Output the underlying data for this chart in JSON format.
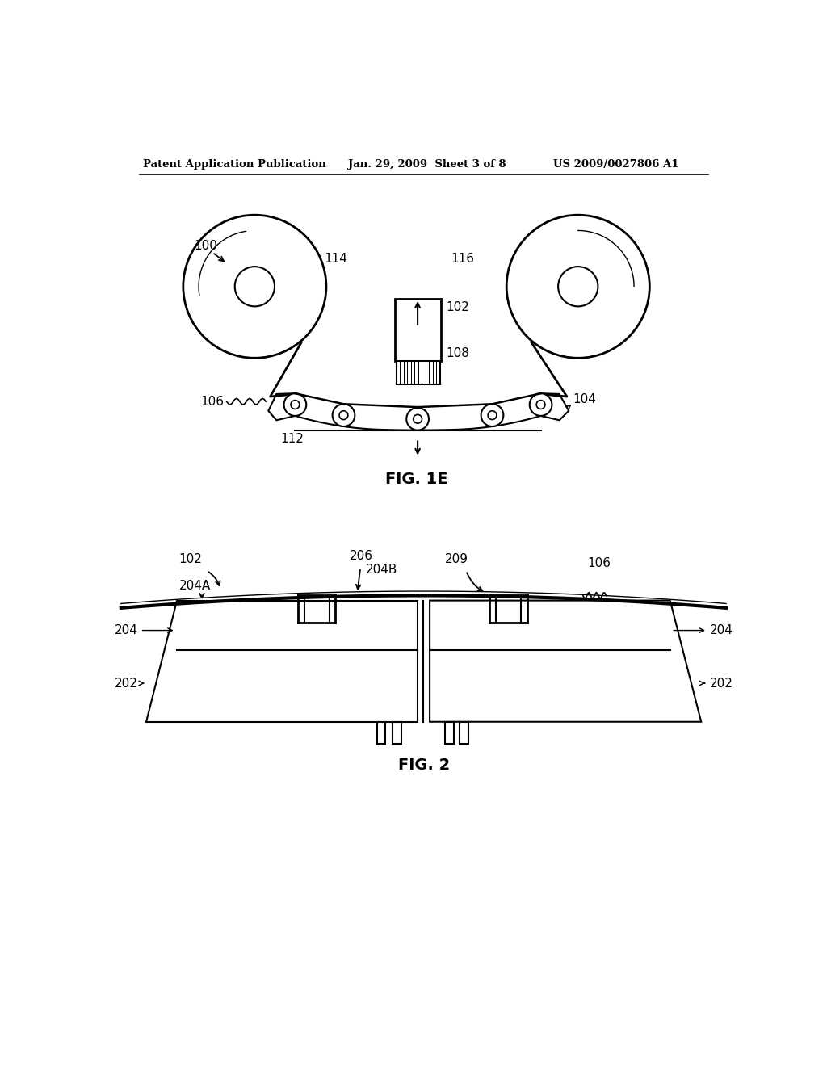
{
  "bg_color": "#ffffff",
  "line_color": "#000000",
  "header_left": "Patent Application Publication",
  "header_mid": "Jan. 29, 2009  Sheet 3 of 8",
  "header_right": "US 2009/0027806 A1",
  "fig1e_label": "FIG. 1E",
  "fig2_label": "FIG. 2"
}
